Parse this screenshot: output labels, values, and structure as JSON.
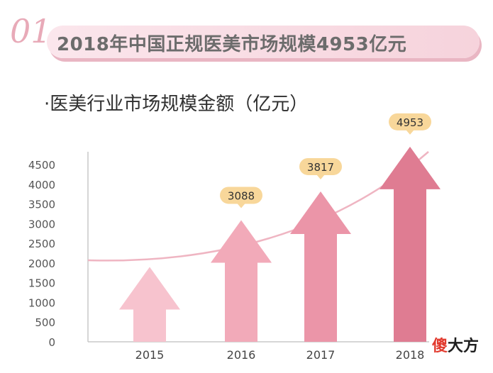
{
  "header": {
    "badge": "01",
    "title": "2018年中国正规医美市场规模4953亿元"
  },
  "subtitle": "·医美行业市场规模金额（亿元）",
  "logo": {
    "part1": "傻",
    "part2": "大方"
  },
  "chart_data": {
    "type": "bar",
    "categories": [
      "2015",
      "2016",
      "2017",
      "2018"
    ],
    "values": [
      1900,
      3088,
      3817,
      4953
    ],
    "data_labels": [
      "",
      "3088",
      "3817",
      "4953"
    ],
    "ylim": [
      0,
      4500
    ],
    "yticks": [
      0,
      500,
      1000,
      1500,
      2000,
      2500,
      3000,
      3500,
      4000,
      4500
    ],
    "title": "",
    "xlabel": "",
    "ylabel": "",
    "grid": false,
    "colors": {
      "bars": [
        "#f7c3ce",
        "#f2aab9",
        "#eb95a8",
        "#df7c92"
      ],
      "trend": "#efb5c2",
      "label_bg": "#f8d79a",
      "axis": "#c8c8c8",
      "tick_text": "#555555"
    }
  }
}
